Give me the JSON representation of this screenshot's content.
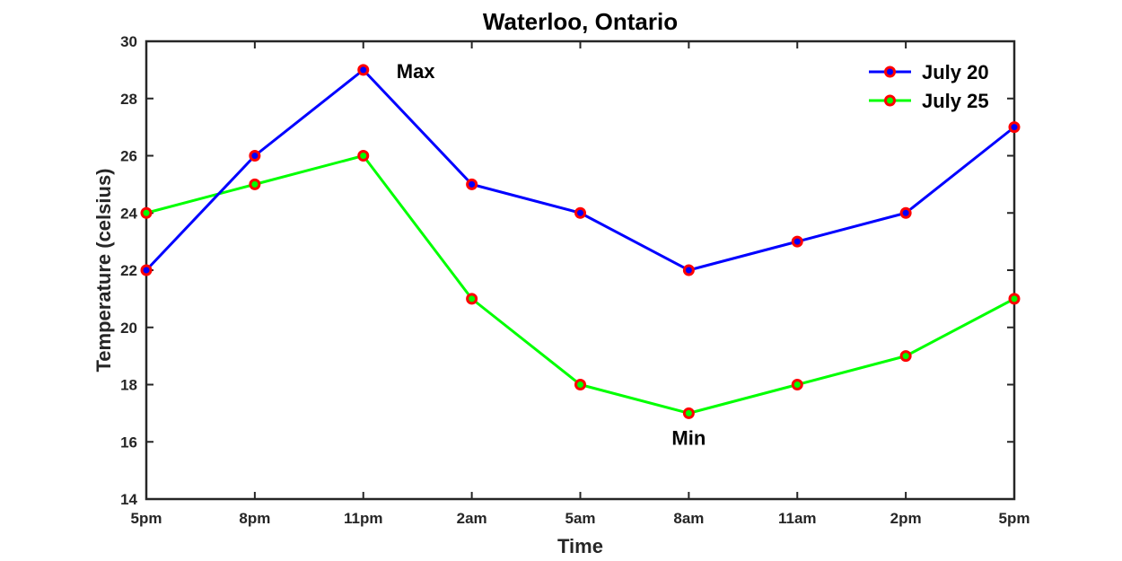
{
  "chart_data": {
    "type": "line",
    "title": "Waterloo, Ontario",
    "xlabel": "Time",
    "ylabel": "Temperature (celsius)",
    "categories": [
      "5pm",
      "8pm",
      "11pm",
      "2am",
      "5am",
      "8am",
      "11am",
      "2pm",
      "5pm"
    ],
    "ylim": [
      14,
      30
    ],
    "yticks": [
      "14",
      "16",
      "18",
      "20",
      "22",
      "24",
      "26",
      "28",
      "30"
    ],
    "grid": false,
    "legend_position": "top-right",
    "series": [
      {
        "name": "July 20",
        "values": [
          22,
          26,
          29,
          25,
          24,
          22,
          23,
          24,
          27
        ],
        "line_color": "#0000ff",
        "marker_edge_color": "#ff0000",
        "marker_face_color": "#0000ff"
      },
      {
        "name": "July 25",
        "values": [
          24,
          25,
          26,
          21,
          18,
          17,
          18,
          19,
          21
        ],
        "line_color": "#00ff00",
        "marker_edge_color": "#ff0000",
        "marker_face_color": "#00ff00"
      }
    ],
    "annotations": [
      {
        "text": "Max",
        "series": 0,
        "index": 2
      },
      {
        "text": "Min",
        "series": 1,
        "index": 5
      }
    ]
  }
}
